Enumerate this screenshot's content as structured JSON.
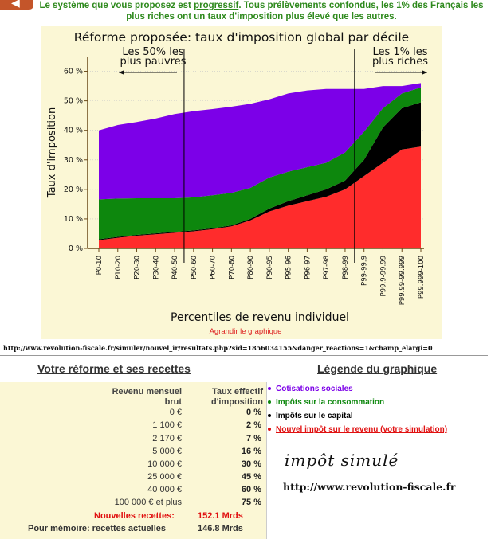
{
  "header": {
    "back_icon": "arrow-left-icon",
    "intro_before": "Le système que vous proposez est ",
    "intro_emph": "progressif",
    "intro_after": ". Tous prélèvements confondus, les 1% des Français les plus riches ont un taux d'imposition plus élevé que les autres."
  },
  "chart_data": {
    "type": "area",
    "title": "Réforme proposée: taux d'imposition global par décile",
    "xlabel": "Percentiles de revenu individuel",
    "ylabel": "Taux d'imposition",
    "ylim": [
      0,
      65
    ],
    "yticks": [
      "0 %",
      "10 %",
      "20 %",
      "30 %",
      "40 %",
      "50 %",
      "60 %"
    ],
    "stacked": true,
    "categories": [
      "P0-10",
      "P10-20",
      "P20-30",
      "P30-40",
      "P40-50",
      "P50-60",
      "P60-70",
      "P70-80",
      "P80-90",
      "P90-95",
      "P95-96",
      "P96-97",
      "P97-98",
      "P98-99",
      "P99-99.9",
      "P99.9-99.99",
      "P99.99-99.999",
      "P99.999-100"
    ],
    "series": [
      {
        "name": "Nouvel impôt sur le revenu (votre simulation)",
        "color": "#ff2c2c",
        "values": [
          2.8,
          3.6,
          4.3,
          4.8,
          5.3,
          5.8,
          6.5,
          7.5,
          9.5,
          12.5,
          14.5,
          16.0,
          17.5,
          20.0,
          24.5,
          29.0,
          33.5,
          34.5
        ]
      },
      {
        "name": "Impôts sur le capital",
        "color": "#000000",
        "values": [
          0.3,
          0.3,
          0.3,
          0.3,
          0.3,
          0.3,
          0.3,
          0.3,
          0.5,
          1.0,
          1.5,
          2.0,
          2.5,
          3.0,
          5.5,
          12.0,
          14.0,
          15.0
        ]
      },
      {
        "name": "Impôts sur la consommation",
        "color": "#0d870d",
        "values": [
          13.5,
          13.0,
          12.4,
          11.9,
          11.4,
          11.2,
          11.2,
          11.0,
          10.5,
          10.5,
          10.0,
          9.5,
          9.0,
          9.5,
          9.5,
          6.5,
          5.0,
          5.0
        ]
      },
      {
        "name": "Cotisations sociales",
        "color": "#7c00e8",
        "values": [
          23.4,
          24.9,
          25.8,
          27.0,
          28.5,
          29.2,
          29.2,
          29.2,
          28.5,
          26.5,
          26.5,
          26.0,
          25.0,
          21.5,
          14.5,
          7.5,
          2.5,
          1.5
        ]
      }
    ],
    "annotations": [
      {
        "text": "Les 50% les plus pauvres",
        "lines": [
          "Les 50% les",
          "plus pauvres"
        ],
        "arrow": "left"
      },
      {
        "text": "Les 1% les plus riches",
        "lines": [
          "Les 1% les",
          "plus riches"
        ],
        "arrow": "right"
      }
    ],
    "grid": true
  },
  "links": {
    "enlarge": "Agrandir le graphique",
    "results_url": "http://www.revolution-fiscale.fr/simuler/nouvel_ir/resultats.php?sid=1856034155&danger_reactions=1&champ_elargi=0"
  },
  "reform": {
    "title": "Votre réforme et ses recettes",
    "col1": "Revenu mensuel brut",
    "col1_lines": [
      "Revenu mensuel",
      "brut"
    ],
    "col2": "Taux effectif d'imposition",
    "col2_lines": [
      "Taux effectif",
      "d'imposition"
    ],
    "rows": [
      {
        "income": "0 €",
        "rate": "0 %"
      },
      {
        "income": "1 100 €",
        "rate": "2 %"
      },
      {
        "income": "2 170 €",
        "rate": "7 %"
      },
      {
        "income": "5 000 €",
        "rate": "16 %"
      },
      {
        "income": "10 000 €",
        "rate": "30 %"
      },
      {
        "income": "25 000 €",
        "rate": "45 %"
      },
      {
        "income": "40 000 €",
        "rate": "60 %"
      },
      {
        "income": "100 000 € et plus",
        "rate": "75 %"
      }
    ],
    "new_revenue_label": "Nouvelles recettes:",
    "new_revenue_value": "152.1 Mrds",
    "current_revenue_label": "Pour mémoire: recettes actuelles",
    "current_revenue_value": "146.8 Mrds"
  },
  "legend": {
    "title": "Légende du graphique",
    "items": [
      {
        "label": "Cotisations sociales",
        "color": "#7c00e8",
        "underline": false
      },
      {
        "label": "Impôts sur la consommation",
        "color": "#0d870d",
        "underline": false
      },
      {
        "label": "Impôts sur le capital",
        "color": "#000000",
        "underline": false
      },
      {
        "label": "Nouvel impôt sur le revenu (votre simulation)",
        "color": "#e01010",
        "underline": true
      }
    ]
  },
  "stamp": {
    "text": "impôt simulé",
    "url": "http://www.revolution-fiscale.fr"
  },
  "colors": {
    "accent": "#c4552a",
    "intro_green": "#2f8a1e",
    "link_red": "#d22222",
    "panel_bg": "#fbf7d5"
  }
}
